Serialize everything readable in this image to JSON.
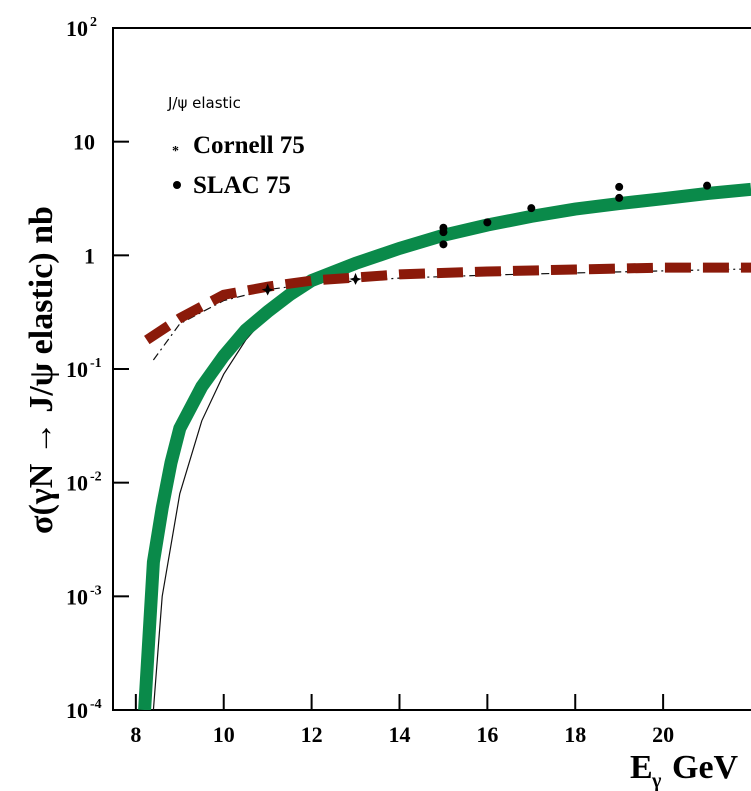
{
  "chart_data": {
    "type": "line",
    "y_label": "σ(γN → J/ψ elastic) nb",
    "x_label": {
      "main": "E",
      "sub": "γ",
      "unit": "GeV"
    },
    "legend_title": "J/ψ elastic",
    "log_y": true,
    "xlim": [
      7.48,
      22.0
    ],
    "ylim": [
      0.0001,
      100
    ],
    "xticks": [
      8,
      10,
      12,
      14,
      16,
      18,
      20
    ],
    "yticks": [
      {
        "value": 100,
        "label": "10",
        "exponent": "2"
      },
      10,
      1,
      {
        "value": 0.1,
        "label": "10",
        "exponent": "-1"
      },
      {
        "value": 0.01,
        "label": "10",
        "exponent": "-2"
      },
      {
        "value": 0.001,
        "label": "10",
        "exponent": "-3"
      },
      {
        "value": 0.0001,
        "label": "10",
        "exponent": "-4"
      }
    ],
    "series": [
      {
        "color": "#111111",
        "width": 1.2,
        "line_style": "solid",
        "x": [
          8.4,
          8.6,
          9,
          9.5,
          10,
          10.5,
          11,
          12,
          13,
          14,
          15,
          16,
          17,
          18,
          19,
          20,
          21,
          22
        ],
        "values": [
          0.0001,
          0.001,
          0.008,
          0.035,
          0.09,
          0.18,
          0.3,
          0.58,
          0.85,
          1.15,
          1.5,
          1.85,
          2.2,
          2.55,
          2.85,
          3.15,
          3.5,
          3.8
        ]
      },
      {
        "color": "#111111",
        "width": 1.2,
        "line_style": "dashdot",
        "x": [
          8.4,
          9,
          10,
          11,
          12,
          14,
          16,
          18,
          20,
          22
        ],
        "values": [
          0.12,
          0.25,
          0.4,
          0.5,
          0.56,
          0.63,
          0.67,
          0.7,
          0.73,
          0.76
        ]
      },
      {
        "color": "#0a8a4a",
        "width": 13,
        "line_style": "solid",
        "x": [
          8.2,
          8.4,
          8.6,
          8.8,
          9,
          9.5,
          10,
          10.5,
          11,
          11.5,
          12,
          13,
          14,
          15,
          16,
          17,
          18,
          19,
          20,
          21,
          22
        ],
        "values": [
          0.0001,
          0.002,
          0.006,
          0.015,
          0.03,
          0.07,
          0.13,
          0.22,
          0.32,
          0.45,
          0.6,
          0.85,
          1.15,
          1.5,
          1.85,
          2.2,
          2.55,
          2.85,
          3.15,
          3.5,
          3.8
        ]
      },
      {
        "color": "#8b1a0a",
        "width": 10,
        "line_style": "dashed",
        "x": [
          8.25,
          9,
          10,
          11,
          12,
          14,
          16,
          18,
          20,
          22
        ],
        "values": [
          0.18,
          0.28,
          0.45,
          0.53,
          0.6,
          0.68,
          0.72,
          0.75,
          0.78,
          0.78
        ]
      },
      {
        "name": "Cornell 75",
        "color": "#000000",
        "marker": "star",
        "scatter": true,
        "x": [
          11,
          13
        ],
        "values": [
          0.5,
          0.62
        ]
      },
      {
        "name": "SLAC 75",
        "color": "#000000",
        "marker": "circle",
        "scatter": true,
        "x": [
          15,
          15,
          15,
          16,
          17,
          19,
          19,
          21
        ],
        "values": [
          1.25,
          1.6,
          1.75,
          1.95,
          2.6,
          3.2,
          4.0,
          4.1
        ]
      }
    ]
  }
}
